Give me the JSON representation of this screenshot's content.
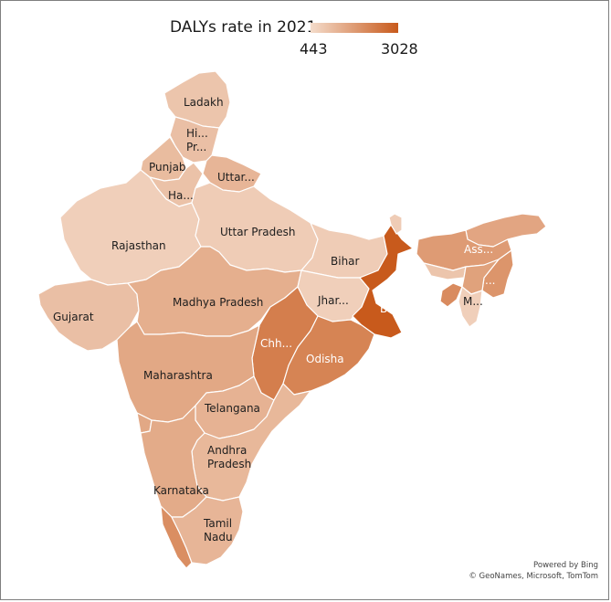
{
  "legend": {
    "title": "DALYs rate in 2021",
    "min_label": "443",
    "max_label": "3028",
    "min": 443,
    "max": 3028,
    "color_low": "#f4dccb",
    "color_high": "#c85a1c"
  },
  "regions": {
    "ladakh": {
      "label": "Ladakh",
      "level": 0.18
    },
    "himachal": {
      "label": [
        "Hi...",
        "Pr..."
      ],
      "level": 0.22
    },
    "punjab": {
      "label": "Punjab",
      "level": 0.25
    },
    "uttarakhand": {
      "label": "Uttar...",
      "level": 0.3
    },
    "haryana": {
      "label": "Ha...",
      "level": 0.2
    },
    "rajasthan": {
      "label": "Rajasthan",
      "level": 0.1
    },
    "uttar_pradesh": {
      "label": "Uttar Pradesh",
      "level": 0.12
    },
    "bihar": {
      "label": "Bihar",
      "level": 0.12
    },
    "gujarat": {
      "label": "Gujarat",
      "level": 0.22
    },
    "madhya_pradesh": {
      "label": "Madhya Pradesh",
      "level": 0.35
    },
    "jharkhand": {
      "label": "Jhar...",
      "level": 0.1
    },
    "west_bengal": {
      "label": [
        "W...",
        "B..."
      ],
      "level": 1.0
    },
    "chhattisgarh": {
      "label": "Chh...",
      "level": 0.72
    },
    "odisha": {
      "label": "Odisha",
      "level": 0.68
    },
    "maharashtra": {
      "label": "Maharashtra",
      "level": 0.4
    },
    "telangana": {
      "label": "Telangana",
      "level": 0.32
    },
    "andhra_pradesh": {
      "label": [
        "Andhra",
        "Pradesh"
      ],
      "level": 0.28
    },
    "karnataka": {
      "label": "Karnataka",
      "level": 0.38
    },
    "tamil_nadu": {
      "label": [
        "Tamil",
        "Nadu"
      ],
      "level": 0.3
    },
    "kerala": {
      "label": "",
      "level": 0.6
    },
    "assam": {
      "label": "Ass...",
      "level": 0.5
    },
    "north_east_small": {
      "label": "...",
      "level": 0.55
    },
    "mizoram": {
      "label": "M...",
      "level": 0.1
    },
    "manipur_region": {
      "label": "",
      "level": 0.45
    },
    "sikkim": {
      "label": "",
      "level": 0.12
    },
    "tripura": {
      "label": "",
      "level": 0.62
    },
    "meghalaya": {
      "label": "",
      "level": 0.18
    },
    "arunachal": {
      "label": "",
      "level": 0.42
    },
    "goa": {
      "label": "",
      "level": 0.4
    }
  },
  "attribution": {
    "line1": "Powered by Bing",
    "line2": "© GeoNames, Microsoft, TomTom"
  }
}
